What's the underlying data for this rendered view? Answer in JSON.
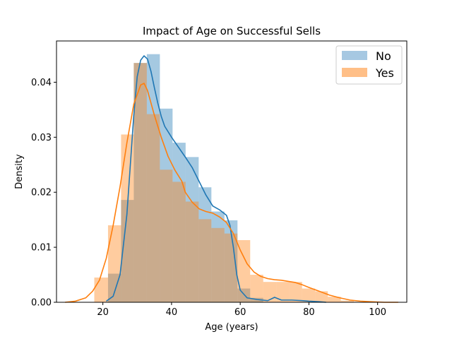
{
  "chart_data": {
    "type": "histogram_kde",
    "title": "Impact of Age on Successful Sells",
    "xlabel": "Age (years)",
    "ylabel": "Density",
    "xlim": [
      6.5,
      108.5
    ],
    "ylim": [
      0,
      0.0475
    ],
    "xticks": [
      20,
      40,
      60,
      80,
      100
    ],
    "yticks": [
      0.0,
      0.01,
      0.02,
      0.03,
      0.04
    ],
    "ytick_labels": [
      "0.00",
      "0.01",
      "0.02",
      "0.03",
      "0.04"
    ],
    "legend_position": "top-right",
    "grid": false,
    "series": [
      {
        "name": "No",
        "color": "#1f77b4",
        "bar_color": "#a6c8e2",
        "bins": [
          {
            "x0": 21.5,
            "x1": 25.3,
            "y": 0.0052
          },
          {
            "x0": 25.3,
            "x1": 29.0,
            "y": 0.0186
          },
          {
            "x0": 29.0,
            "x1": 32.8,
            "y": 0.0435
          },
          {
            "x0": 32.8,
            "x1": 36.6,
            "y": 0.0451
          },
          {
            "x0": 36.6,
            "x1": 40.3,
            "y": 0.0352
          },
          {
            "x0": 40.3,
            "x1": 44.1,
            "y": 0.029
          },
          {
            "x0": 44.1,
            "x1": 47.9,
            "y": 0.0264
          },
          {
            "x0": 47.9,
            "x1": 51.6,
            "y": 0.0209
          },
          {
            "x0": 51.6,
            "x1": 55.4,
            "y": 0.0165
          },
          {
            "x0": 55.4,
            "x1": 59.2,
            "y": 0.0149
          },
          {
            "x0": 59.2,
            "x1": 62.9,
            "y": 0.0025
          },
          {
            "x0": 62.9,
            "x1": 66.7,
            "y": 0.0008
          }
        ],
        "kde": [
          [
            21,
            0.0002
          ],
          [
            23,
            0.0011
          ],
          [
            25,
            0.005
          ],
          [
            27,
            0.016
          ],
          [
            28,
            0.025
          ],
          [
            29,
            0.034
          ],
          [
            30,
            0.041
          ],
          [
            31,
            0.044
          ],
          [
            32,
            0.0448
          ],
          [
            33,
            0.0442
          ],
          [
            34,
            0.042
          ],
          [
            35,
            0.039
          ],
          [
            36,
            0.0362
          ],
          [
            37,
            0.0338
          ],
          [
            38,
            0.032
          ],
          [
            40,
            0.03
          ],
          [
            42,
            0.0282
          ],
          [
            44,
            0.0264
          ],
          [
            46,
            0.0245
          ],
          [
            48,
            0.022
          ],
          [
            50,
            0.0195
          ],
          [
            52,
            0.0175
          ],
          [
            54,
            0.0168
          ],
          [
            56,
            0.0158
          ],
          [
            57,
            0.014
          ],
          [
            58,
            0.01
          ],
          [
            59,
            0.005
          ],
          [
            60,
            0.0022
          ],
          [
            62,
            0.0008
          ],
          [
            65,
            0.0005
          ],
          [
            68,
            0.0003
          ],
          [
            70,
            0.0009
          ],
          [
            72,
            0.0004
          ],
          [
            75,
            0.0004
          ],
          [
            78,
            0.0003
          ],
          [
            80,
            0.0002
          ],
          [
            83,
            0.0001
          ],
          [
            85,
            0.0
          ]
        ]
      },
      {
        "name": "Yes",
        "color": "#ff7f0e",
        "bar_color": "#ffbf87",
        "bins": [
          {
            "x0": 17.5,
            "x1": 21.5,
            "y": 0.0045
          },
          {
            "x0": 21.5,
            "x1": 25.3,
            "y": 0.014
          },
          {
            "x0": 25.3,
            "x1": 29.0,
            "y": 0.0305
          },
          {
            "x0": 29.0,
            "x1": 32.8,
            "y": 0.0435
          },
          {
            "x0": 32.8,
            "x1": 36.6,
            "y": 0.0342
          },
          {
            "x0": 36.6,
            "x1": 40.3,
            "y": 0.0241
          },
          {
            "x0": 40.3,
            "x1": 44.1,
            "y": 0.0219
          },
          {
            "x0": 44.1,
            "x1": 47.9,
            "y": 0.0183
          },
          {
            "x0": 47.9,
            "x1": 51.6,
            "y": 0.0151
          },
          {
            "x0": 51.6,
            "x1": 55.4,
            "y": 0.0135
          },
          {
            "x0": 55.4,
            "x1": 59.2,
            "y": 0.0125
          },
          {
            "x0": 59.2,
            "x1": 62.9,
            "y": 0.0113
          },
          {
            "x0": 62.9,
            "x1": 66.7,
            "y": 0.005
          },
          {
            "x0": 66.7,
            "x1": 70.5,
            "y": 0.0037
          },
          {
            "x0": 70.5,
            "x1": 74.2,
            "y": 0.0037
          },
          {
            "x0": 74.2,
            "x1": 78.0,
            "y": 0.0037
          },
          {
            "x0": 78.0,
            "x1": 81.8,
            "y": 0.0025
          },
          {
            "x0": 81.8,
            "x1": 85.5,
            "y": 0.002
          },
          {
            "x0": 85.5,
            "x1": 89.3,
            "y": 0.001
          },
          {
            "x0": 89.3,
            "x1": 93.1,
            "y": 0.0003
          }
        ],
        "kde": [
          [
            9,
            0.0
          ],
          [
            12,
            0.0002
          ],
          [
            15,
            0.0008
          ],
          [
            17,
            0.002
          ],
          [
            19,
            0.004
          ],
          [
            21,
            0.008
          ],
          [
            23,
            0.014
          ],
          [
            25,
            0.021
          ],
          [
            27,
            0.029
          ],
          [
            29,
            0.036
          ],
          [
            31,
            0.0395
          ],
          [
            32,
            0.0398
          ],
          [
            33,
            0.0385
          ],
          [
            35,
            0.034
          ],
          [
            37,
            0.03
          ],
          [
            39,
            0.0265
          ],
          [
            41,
            0.024
          ],
          [
            43,
            0.022
          ],
          [
            44,
            0.02
          ],
          [
            46,
            0.0182
          ],
          [
            48,
            0.017
          ],
          [
            50,
            0.0165
          ],
          [
            52,
            0.0162
          ],
          [
            54,
            0.0155
          ],
          [
            56,
            0.0145
          ],
          [
            58,
            0.0125
          ],
          [
            60,
            0.0095
          ],
          [
            62,
            0.007
          ],
          [
            64,
            0.0055
          ],
          [
            66,
            0.0047
          ],
          [
            68,
            0.0043
          ],
          [
            70,
            0.0041
          ],
          [
            72,
            0.004
          ],
          [
            74,
            0.0038
          ],
          [
            76,
            0.0036
          ],
          [
            78,
            0.0032
          ],
          [
            80,
            0.0027
          ],
          [
            83,
            0.002
          ],
          [
            86,
            0.0013
          ],
          [
            89,
            0.0008
          ],
          [
            92,
            0.0004
          ],
          [
            95,
            0.0002
          ],
          [
            98,
            0.0001
          ],
          [
            102,
            0.0
          ],
          [
            106,
            0.0
          ]
        ]
      }
    ]
  }
}
